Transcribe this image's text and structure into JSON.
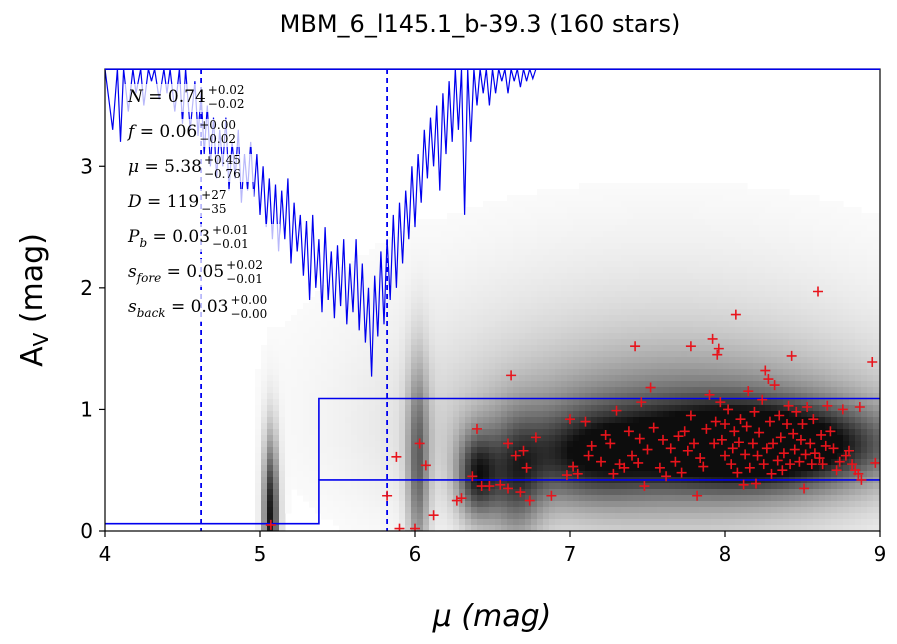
{
  "chart_data": {
    "type": "scatter",
    "title": "MBM_6_l145.1_b-39.3 (160 stars)",
    "xlabel": "μ (mag)",
    "ylabel_main": "A",
    "ylabel_sub": "V",
    "ylabel_unit": " (mag)",
    "xlim": [
      4,
      9
    ],
    "ylim": [
      0,
      3.8
    ],
    "xticks": [
      "4",
      "5",
      "6",
      "7",
      "8",
      "9"
    ],
    "yticks": [
      "0",
      "1",
      "2",
      "3"
    ],
    "colors": {
      "points": "#e8141c",
      "model": "#0000ee",
      "background": "#ffffff"
    },
    "annotations": [
      {
        "sym": "N",
        "value": "0.74",
        "plus": "+0.02",
        "minus": "−0.02"
      },
      {
        "sym": "f",
        "value": "0.06",
        "plus": "+0.00",
        "minus": "−0.02"
      },
      {
        "sym": "μ",
        "value": "5.38",
        "plus": "+0.45",
        "minus": "−0.76"
      },
      {
        "sym": "D",
        "value": "119",
        "plus": "+27",
        "minus": "−35"
      },
      {
        "sym": "P",
        "sub": "b",
        "value": "0.03",
        "plus": "+0.01",
        "minus": "−0.01"
      },
      {
        "sym": "s",
        "sub": "fore",
        "value": "0.05",
        "plus": "+0.02",
        "minus": "−0.01"
      },
      {
        "sym": "s",
        "sub": "back",
        "value": "0.03",
        "plus": "+0.00",
        "minus": "−0.00"
      }
    ],
    "vlines": [
      4.62,
      5.82
    ],
    "step_lower": [
      [
        4.0,
        0.06
      ],
      [
        5.38,
        0.06
      ],
      [
        5.38,
        0.42
      ],
      [
        9.0,
        0.42
      ]
    ],
    "step_upper": [
      [
        5.38,
        0.42
      ],
      [
        5.38,
        1.09
      ],
      [
        9.0,
        1.09
      ]
    ],
    "density_blobs": [
      {
        "x": 5.07,
        "y": 0.12,
        "sx": 0.035,
        "sy": 0.45,
        "w": 0.95
      },
      {
        "x": 6.02,
        "y": 0.55,
        "sx": 0.05,
        "sy": 0.6,
        "w": 0.55
      },
      {
        "x": 6.4,
        "y": 0.45,
        "sx": 0.09,
        "sy": 0.25,
        "w": 0.7
      },
      {
        "x": 6.65,
        "y": 0.4,
        "sx": 0.12,
        "sy": 0.35,
        "w": 0.5
      },
      {
        "x": 8.2,
        "y": 0.7,
        "sx": 0.55,
        "sy": 0.22,
        "w": 1.0
      },
      {
        "x": 7.8,
        "y": 0.75,
        "sx": 0.9,
        "sy": 0.45,
        "w": 0.55
      },
      {
        "x": 7.6,
        "y": 1.2,
        "sx": 1.2,
        "sy": 0.8,
        "w": 0.18
      },
      {
        "x": 7.1,
        "y": 0.6,
        "sx": 0.3,
        "sy": 0.25,
        "w": 0.45
      }
    ],
    "points": [
      [
        5.07,
        0.05
      ],
      [
        5.82,
        0.29
      ],
      [
        5.88,
        0.61
      ],
      [
        5.9,
        0.02
      ],
      [
        6.0,
        0.02
      ],
      [
        6.03,
        0.72
      ],
      [
        6.07,
        0.54
      ],
      [
        6.12,
        0.13
      ],
      [
        6.27,
        0.25
      ],
      [
        6.3,
        0.27
      ],
      [
        6.37,
        0.45
      ],
      [
        6.4,
        0.84
      ],
      [
        6.43,
        0.37
      ],
      [
        6.48,
        0.37
      ],
      [
        6.55,
        0.38
      ],
      [
        6.6,
        0.72
      ],
      [
        6.6,
        0.35
      ],
      [
        6.62,
        1.28
      ],
      [
        6.65,
        0.62
      ],
      [
        6.68,
        0.32
      ],
      [
        6.7,
        0.66
      ],
      [
        6.72,
        0.52
      ],
      [
        6.74,
        0.25
      ],
      [
        6.78,
        0.77
      ],
      [
        6.88,
        0.29
      ],
      [
        6.98,
        0.46
      ],
      [
        7.0,
        0.92
      ],
      [
        7.02,
        0.53
      ],
      [
        7.05,
        0.47
      ],
      [
        7.1,
        0.9
      ],
      [
        7.12,
        0.62
      ],
      [
        7.14,
        0.7
      ],
      [
        7.2,
        0.57
      ],
      [
        7.23,
        0.79
      ],
      [
        7.26,
        0.72
      ],
      [
        7.28,
        0.47
      ],
      [
        7.3,
        0.99
      ],
      [
        7.32,
        0.55
      ],
      [
        7.35,
        0.52
      ],
      [
        7.38,
        0.82
      ],
      [
        7.4,
        0.62
      ],
      [
        7.42,
        1.52
      ],
      [
        7.44,
        0.56
      ],
      [
        7.45,
        0.76
      ],
      [
        7.46,
        1.06
      ],
      [
        7.48,
        0.37
      ],
      [
        7.5,
        0.67
      ],
      [
        7.52,
        1.18
      ],
      [
        7.54,
        0.85
      ],
      [
        7.58,
        0.52
      ],
      [
        7.6,
        0.75
      ],
      [
        7.62,
        0.45
      ],
      [
        7.65,
        0.68
      ],
      [
        7.68,
        0.57
      ],
      [
        7.7,
        0.78
      ],
      [
        7.72,
        0.48
      ],
      [
        7.74,
        0.82
      ],
      [
        7.76,
        0.66
      ],
      [
        7.78,
        1.52
      ],
      [
        7.78,
        0.95
      ],
      [
        7.8,
        0.72
      ],
      [
        7.82,
        0.29
      ],
      [
        7.84,
        0.6
      ],
      [
        7.86,
        0.53
      ],
      [
        7.88,
        0.84
      ],
      [
        7.9,
        1.12
      ],
      [
        7.92,
        1.58
      ],
      [
        7.93,
        0.72
      ],
      [
        7.94,
        0.9
      ],
      [
        7.95,
        1.45
      ],
      [
        7.96,
        1.5
      ],
      [
        7.97,
        1.06
      ],
      [
        7.98,
        0.75
      ],
      [
        8.0,
        0.62
      ],
      [
        8.0,
        0.88
      ],
      [
        8.02,
        1.0
      ],
      [
        8.04,
        0.55
      ],
      [
        8.05,
        0.68
      ],
      [
        8.06,
        0.82
      ],
      [
        8.07,
        1.78
      ],
      [
        8.08,
        0.48
      ],
      [
        8.09,
        0.73
      ],
      [
        8.1,
        0.92
      ],
      [
        8.12,
        0.38
      ],
      [
        8.13,
        0.63
      ],
      [
        8.14,
        0.86
      ],
      [
        8.15,
        1.15
      ],
      [
        8.16,
        0.52
      ],
      [
        8.18,
        0.72
      ],
      [
        8.19,
        0.98
      ],
      [
        8.2,
        0.39
      ],
      [
        8.21,
        0.62
      ],
      [
        8.22,
        0.81
      ],
      [
        8.24,
        1.08
      ],
      [
        8.25,
        0.55
      ],
      [
        8.26,
        1.32
      ],
      [
        8.27,
        0.68
      ],
      [
        8.28,
        1.25
      ],
      [
        8.29,
        0.9
      ],
      [
        8.3,
        0.47
      ],
      [
        8.31,
        0.72
      ],
      [
        8.32,
        1.2
      ],
      [
        8.34,
        0.58
      ],
      [
        8.35,
        0.95
      ],
      [
        8.36,
        0.77
      ],
      [
        8.37,
        0.5
      ],
      [
        8.38,
        0.64
      ],
      [
        8.4,
        0.88
      ],
      [
        8.41,
        1.03
      ],
      [
        8.42,
        0.55
      ],
      [
        8.43,
        1.44
      ],
      [
        8.44,
        0.8
      ],
      [
        8.45,
        0.67
      ],
      [
        8.46,
        0.98
      ],
      [
        8.48,
        0.57
      ],
      [
        8.49,
        0.75
      ],
      [
        8.5,
        0.88
      ],
      [
        8.51,
        0.35
      ],
      [
        8.52,
        0.63
      ],
      [
        8.53,
        1.02
      ],
      [
        8.55,
        0.72
      ],
      [
        8.56,
        0.55
      ],
      [
        8.57,
        0.92
      ],
      [
        8.58,
        0.64
      ],
      [
        8.6,
        1.97
      ],
      [
        8.61,
        0.6
      ],
      [
        8.62,
        0.79
      ],
      [
        8.63,
        0.55
      ],
      [
        8.65,
        0.7
      ],
      [
        8.66,
        1.03
      ],
      [
        8.68,
        0.82
      ],
      [
        8.7,
        0.68
      ],
      [
        8.72,
        0.5
      ],
      [
        8.74,
        0.57
      ],
      [
        8.76,
        1.0
      ],
      [
        8.78,
        0.62
      ],
      [
        8.8,
        0.66
      ],
      [
        8.82,
        0.55
      ],
      [
        8.84,
        0.5
      ],
      [
        8.86,
        0.47
      ],
      [
        8.87,
        1.02
      ],
      [
        8.88,
        0.42
      ],
      [
        8.95,
        1.39
      ],
      [
        8.97,
        0.56
      ]
    ],
    "model_curve": [
      [
        4.0,
        3.8
      ],
      [
        4.05,
        3.3
      ],
      [
        4.08,
        3.8
      ],
      [
        4.1,
        3.2
      ],
      [
        4.12,
        3.8
      ],
      [
        4.15,
        3.45
      ],
      [
        4.18,
        3.8
      ],
      [
        4.2,
        3.6
      ],
      [
        4.23,
        3.8
      ],
      [
        4.25,
        3.5
      ],
      [
        4.28,
        3.8
      ],
      [
        4.3,
        3.7
      ],
      [
        4.32,
        3.8
      ],
      [
        4.35,
        3.55
      ],
      [
        4.38,
        3.8
      ],
      [
        4.4,
        3.6
      ],
      [
        4.42,
        3.8
      ],
      [
        4.45,
        3.45
      ],
      [
        4.48,
        3.8
      ],
      [
        4.5,
        3.35
      ],
      [
        4.52,
        3.8
      ],
      [
        4.55,
        3.3
      ],
      [
        4.58,
        3.7
      ],
      [
        4.6,
        3.25
      ],
      [
        4.62,
        3.6
      ],
      [
        4.64,
        3.1
      ],
      [
        4.66,
        3.5
      ],
      [
        4.68,
        3.0
      ],
      [
        4.7,
        3.4
      ],
      [
        4.72,
        2.9
      ],
      [
        4.74,
        3.3
      ],
      [
        4.76,
        3.0
      ],
      [
        4.78,
        3.4
      ],
      [
        4.8,
        2.8
      ],
      [
        4.82,
        3.2
      ],
      [
        4.84,
        2.9
      ],
      [
        4.86,
        3.3
      ],
      [
        4.88,
        2.7
      ],
      [
        4.9,
        3.1
      ],
      [
        4.92,
        2.8
      ],
      [
        4.94,
        3.2
      ],
      [
        4.96,
        2.75
      ],
      [
        4.98,
        3.1
      ],
      [
        5.0,
        2.6
      ],
      [
        5.02,
        3.0
      ],
      [
        5.04,
        2.5
      ],
      [
        5.06,
        2.9
      ],
      [
        5.08,
        2.4
      ],
      [
        5.1,
        2.85
      ],
      [
        5.12,
        2.3
      ],
      [
        5.14,
        2.8
      ],
      [
        5.16,
        2.4
      ],
      [
        5.18,
        2.9
      ],
      [
        5.2,
        2.2
      ],
      [
        5.22,
        2.7
      ],
      [
        5.24,
        2.3
      ],
      [
        5.26,
        2.6
      ],
      [
        5.28,
        2.1
      ],
      [
        5.3,
        2.55
      ],
      [
        5.32,
        1.9
      ],
      [
        5.34,
        2.6
      ],
      [
        5.36,
        2.0
      ],
      [
        5.38,
        2.4
      ],
      [
        5.4,
        1.8
      ],
      [
        5.42,
        2.5
      ],
      [
        5.44,
        1.9
      ],
      [
        5.46,
        2.3
      ],
      [
        5.48,
        1.75
      ],
      [
        5.5,
        2.35
      ],
      [
        5.52,
        1.85
      ],
      [
        5.54,
        2.4
      ],
      [
        5.56,
        1.7
      ],
      [
        5.58,
        2.2
      ],
      [
        5.6,
        1.8
      ],
      [
        5.62,
        2.4
      ],
      [
        5.64,
        1.65
      ],
      [
        5.66,
        2.2
      ],
      [
        5.68,
        1.55
      ],
      [
        5.7,
        2.0
      ],
      [
        5.72,
        1.27
      ],
      [
        5.74,
        2.1
      ],
      [
        5.76,
        1.6
      ],
      [
        5.78,
        2.3
      ],
      [
        5.8,
        1.7
      ],
      [
        5.82,
        2.4
      ],
      [
        5.84,
        1.9
      ],
      [
        5.86,
        2.6
      ],
      [
        5.88,
        2.0
      ],
      [
        5.9,
        2.7
      ],
      [
        5.92,
        2.2
      ],
      [
        5.94,
        2.8
      ],
      [
        5.96,
        2.4
      ],
      [
        5.98,
        3.0
      ],
      [
        6.0,
        2.5
      ],
      [
        6.02,
        3.1
      ],
      [
        6.04,
        2.7
      ],
      [
        6.06,
        3.3
      ],
      [
        6.08,
        2.9
      ],
      [
        6.1,
        3.4
      ],
      [
        6.12,
        3.0
      ],
      [
        6.14,
        3.5
      ],
      [
        6.16,
        2.8
      ],
      [
        6.18,
        3.6
      ],
      [
        6.2,
        3.1
      ],
      [
        6.22,
        3.7
      ],
      [
        6.24,
        3.2
      ],
      [
        6.26,
        3.8
      ],
      [
        6.28,
        3.3
      ],
      [
        6.3,
        3.8
      ],
      [
        6.32,
        2.6
      ],
      [
        6.34,
        3.8
      ],
      [
        6.36,
        3.2
      ],
      [
        6.38,
        3.8
      ],
      [
        6.4,
        3.5
      ],
      [
        6.42,
        3.8
      ],
      [
        6.44,
        3.6
      ],
      [
        6.46,
        3.8
      ],
      [
        6.48,
        3.5
      ],
      [
        6.5,
        3.8
      ],
      [
        6.52,
        3.6
      ],
      [
        6.54,
        3.8
      ],
      [
        6.56,
        3.7
      ],
      [
        6.58,
        3.8
      ],
      [
        6.6,
        3.6
      ],
      [
        6.62,
        3.8
      ],
      [
        6.64,
        3.7
      ],
      [
        6.66,
        3.8
      ],
      [
        6.68,
        3.65
      ],
      [
        6.7,
        3.8
      ],
      [
        6.72,
        3.7
      ],
      [
        6.74,
        3.8
      ],
      [
        6.76,
        3.72
      ],
      [
        6.78,
        3.8
      ],
      [
        6.8,
        3.8
      ]
    ]
  }
}
